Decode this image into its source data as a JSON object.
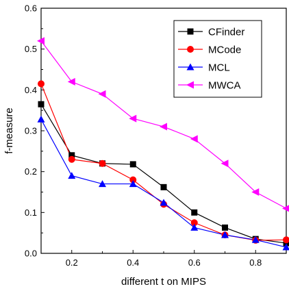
{
  "chart_data": {
    "type": "line",
    "title": "",
    "xlabel": "different t on MIPS",
    "ylabel": "f-measure",
    "xlim": [
      0.1,
      0.9
    ],
    "ylim": [
      0.0,
      0.6
    ],
    "x_ticks": [
      0.2,
      0.4,
      0.6,
      0.8
    ],
    "x_tick_labels": [
      "0.2",
      "0.4",
      "0.6",
      "0.8"
    ],
    "y_ticks": [
      0.0,
      0.1,
      0.2,
      0.3,
      0.4,
      0.5,
      0.6
    ],
    "y_tick_labels": [
      "0.0",
      "0.1",
      "0.2",
      "0.3",
      "0.4",
      "0.5",
      "0.6"
    ],
    "grid": false,
    "legend_position": "top-right",
    "x": [
      0.1,
      0.2,
      0.3,
      0.4,
      0.5,
      0.6,
      0.7,
      0.8,
      0.9
    ],
    "series": [
      {
        "name": "CFinder",
        "color": "#000000",
        "marker": "square",
        "values": [
          0.365,
          0.24,
          0.22,
          0.218,
          0.162,
          0.1,
          0.063,
          0.035,
          0.025
        ]
      },
      {
        "name": "MCode",
        "color": "#ff0000",
        "marker": "circle",
        "values": [
          0.415,
          0.23,
          0.22,
          0.18,
          0.12,
          0.075,
          0.045,
          0.032,
          0.033
        ]
      },
      {
        "name": "MCL",
        "color": "#0000ff",
        "marker": "triangle-up",
        "values": [
          0.328,
          0.19,
          0.17,
          0.17,
          0.124,
          0.063,
          0.045,
          0.033,
          0.015
        ]
      },
      {
        "name": "MWCA",
        "color": "#ff00ff",
        "marker": "triangle-left",
        "values": [
          0.52,
          0.42,
          0.39,
          0.33,
          0.31,
          0.28,
          0.22,
          0.15,
          0.11
        ]
      }
    ]
  }
}
